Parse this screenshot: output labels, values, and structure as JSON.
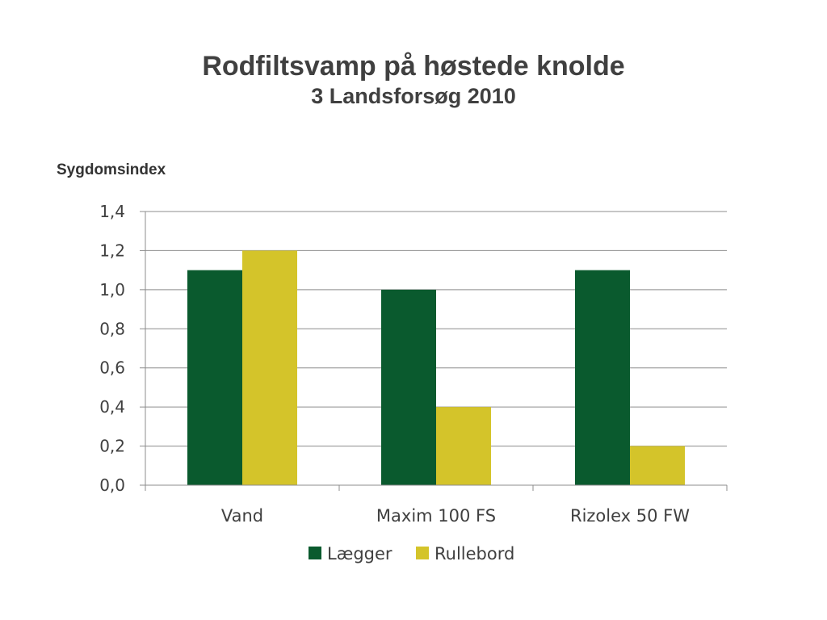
{
  "title": "Rodfiltsvamp på høstede knolde",
  "subtitle": "3 Landsforsøg 2010",
  "chart_data": {
    "type": "bar",
    "title": "Rodfiltsvamp på høstede knolde",
    "subtitle": "3 Landsforsøg 2010",
    "ylabel": "Sygdomsindex",
    "xlabel": "",
    "categories": [
      "Vand",
      "Maxim 100 FS",
      "Rizolex 50 FW"
    ],
    "series": [
      {
        "name": "Lægger",
        "color": "#0a5a2e",
        "values": [
          1.1,
          1.0,
          1.1
        ]
      },
      {
        "name": "Rullebord",
        "color": "#d4c42a",
        "values": [
          1.2,
          0.4,
          0.2
        ]
      }
    ],
    "ylim": [
      0,
      1.4
    ],
    "yticks": [
      "0,0",
      "0,2",
      "0,4",
      "0,6",
      "0,8",
      "1,0",
      "1,2",
      "1,4"
    ],
    "grid": true,
    "legend_position": "bottom"
  }
}
